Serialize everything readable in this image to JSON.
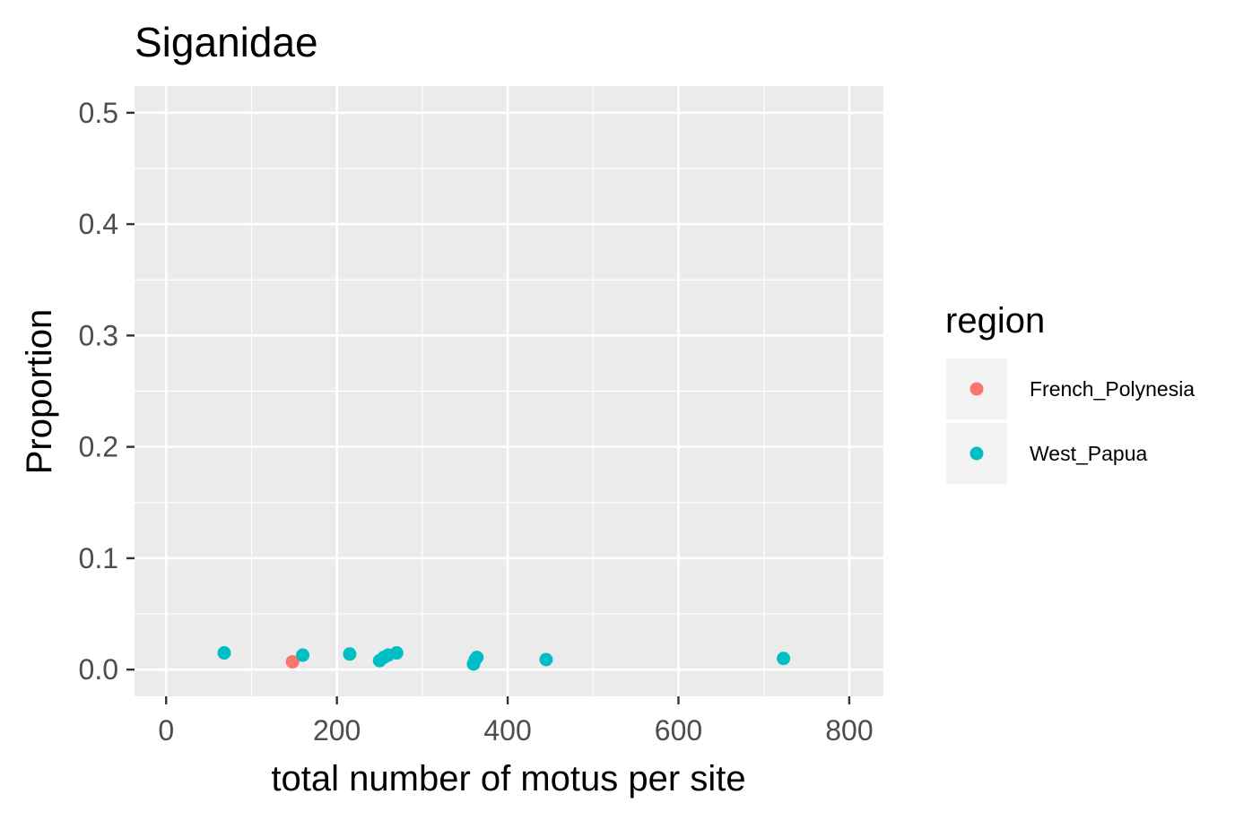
{
  "chart_data": {
    "type": "scatter",
    "title": "Siganidae",
    "xlabel": "total number of motus per site",
    "ylabel": "Proportion",
    "xlim": [
      -37,
      840
    ],
    "ylim": [
      -0.024,
      0.524
    ],
    "x_ticks": [
      0,
      200,
      400,
      600,
      800
    ],
    "x_tick_labels": [
      "0",
      "200",
      "400",
      "600",
      "800"
    ],
    "y_ticks": [
      0.0,
      0.1,
      0.2,
      0.3,
      0.4,
      0.5
    ],
    "y_tick_labels": [
      "0.0",
      "0.1",
      "0.2",
      "0.3",
      "0.4",
      "0.5"
    ],
    "grid": true,
    "legend": {
      "title": "region",
      "position": "right",
      "entries": [
        {
          "label": "French_Polynesia",
          "color": "#F8766D"
        },
        {
          "label": "West_Papua",
          "color": "#00BFC4"
        }
      ]
    },
    "series": [
      {
        "name": "French_Polynesia",
        "color": "#F8766D",
        "points": [
          {
            "x": 148,
            "y": 0.007
          }
        ]
      },
      {
        "name": "West_Papua",
        "color": "#00BFC4",
        "points": [
          {
            "x": 68,
            "y": 0.015
          },
          {
            "x": 160,
            "y": 0.013
          },
          {
            "x": 215,
            "y": 0.014
          },
          {
            "x": 250,
            "y": 0.008
          },
          {
            "x": 255,
            "y": 0.011
          },
          {
            "x": 260,
            "y": 0.013
          },
          {
            "x": 270,
            "y": 0.015
          },
          {
            "x": 360,
            "y": 0.005
          },
          {
            "x": 362,
            "y": 0.009
          },
          {
            "x": 364,
            "y": 0.011
          },
          {
            "x": 445,
            "y": 0.009
          },
          {
            "x": 723,
            "y": 0.01
          }
        ]
      }
    ]
  }
}
